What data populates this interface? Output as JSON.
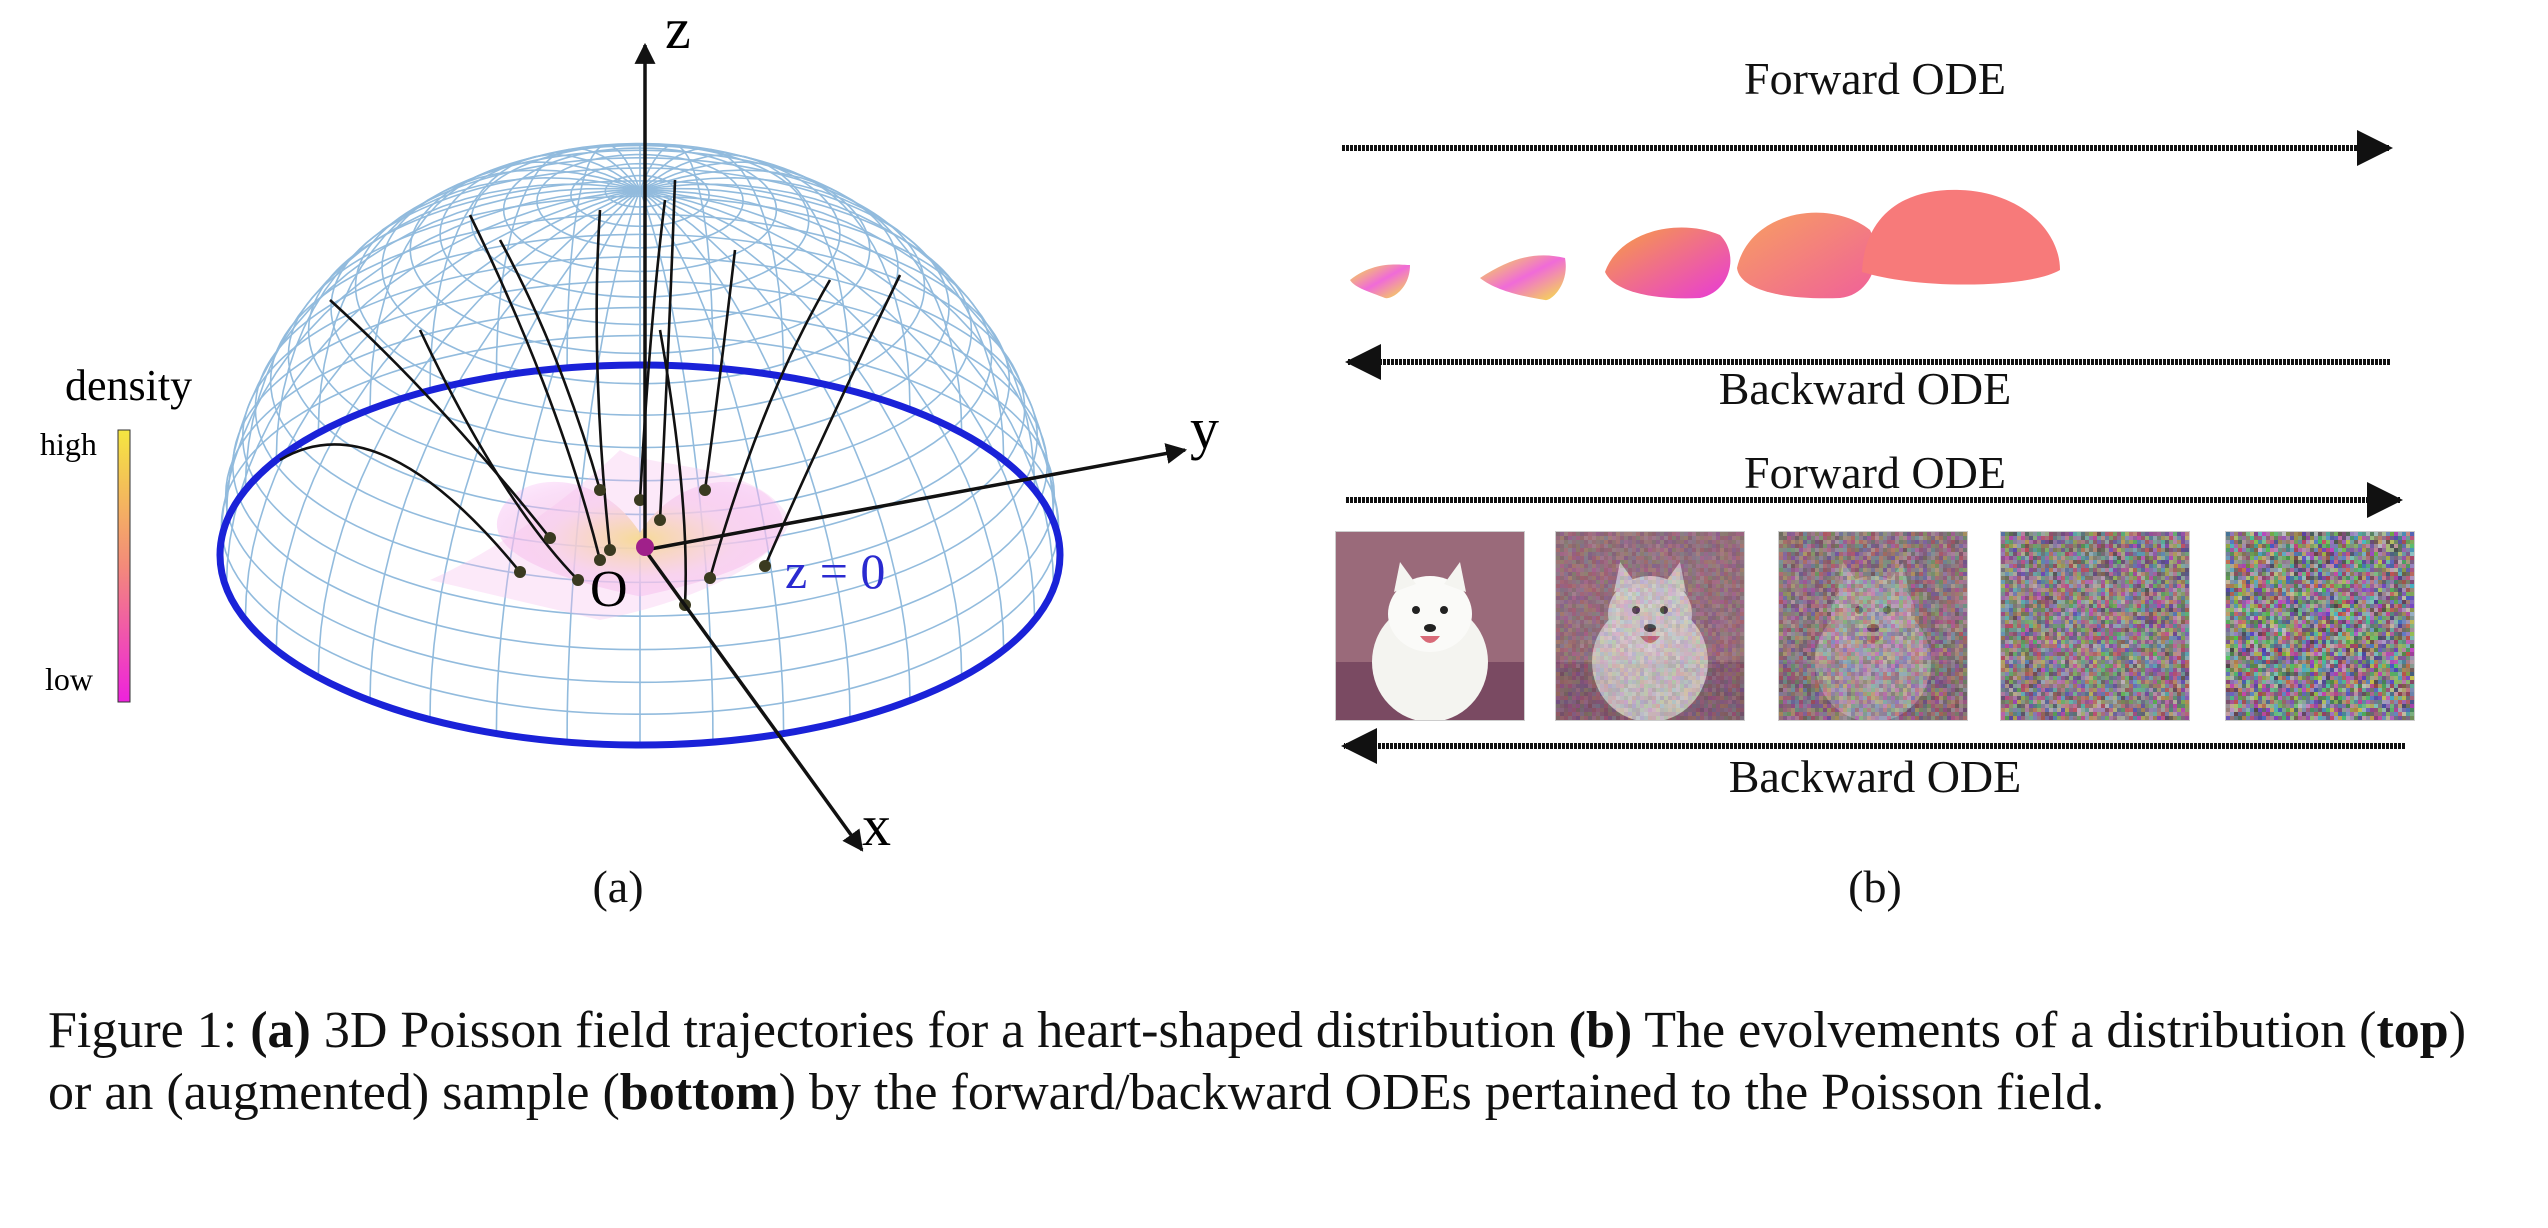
{
  "panel_a": {
    "axis_labels": {
      "z": "z",
      "y": "y",
      "x": "x",
      "origin": "O",
      "plane": "z = 0"
    },
    "colorbar": {
      "title": "density",
      "high": "high",
      "low": "low"
    },
    "sublabel": "(a)"
  },
  "panel_b": {
    "top_forward_label": "Forward ODE",
    "top_backward_label": "Backward ODE",
    "bottom_forward_label": "Forward ODE",
    "bottom_backward_label": "Backward ODE",
    "sublabel": "(b)",
    "noise_levels": [
      0.0,
      0.25,
      0.5,
      0.75,
      1.0
    ]
  },
  "colors": {
    "dome_mesh": "#7fb0d8",
    "rim": "#1a22d8",
    "plane_label": "#2a2ad0",
    "heart_high": "#f5e640",
    "heart_low": "#ee22dd",
    "blob": "#f77a7a"
  },
  "caption": {
    "prefix": "Figure 1: ",
    "a_tag": "(a)",
    "a_text": " 3D Poisson field trajectories for a heart-shaped distribution ",
    "b_tag": "(b)",
    "b_text": " The evolvements of a distribution (",
    "top": "top",
    "mid": ") or an (augmented) sample (",
    "bottom": "bottom",
    "end": ") by the forward/backward ODEs pertained to the Poisson field."
  }
}
